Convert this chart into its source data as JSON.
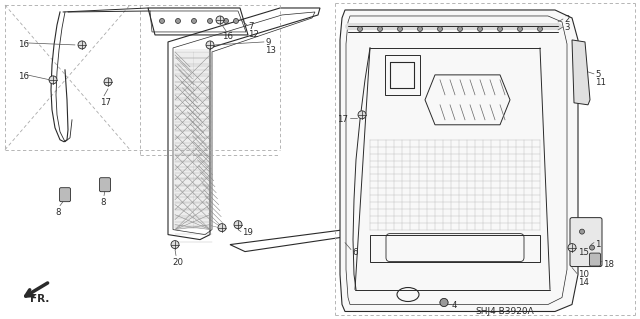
{
  "bg_color": "#ffffff",
  "diagram_code": "SHJ4-B3920A",
  "line_color": "#2a2a2a",
  "dash_color": "#aaaaaa",
  "gray_fill": "#888888",
  "light_gray": "#cccccc",
  "hatch_color": "#666666"
}
